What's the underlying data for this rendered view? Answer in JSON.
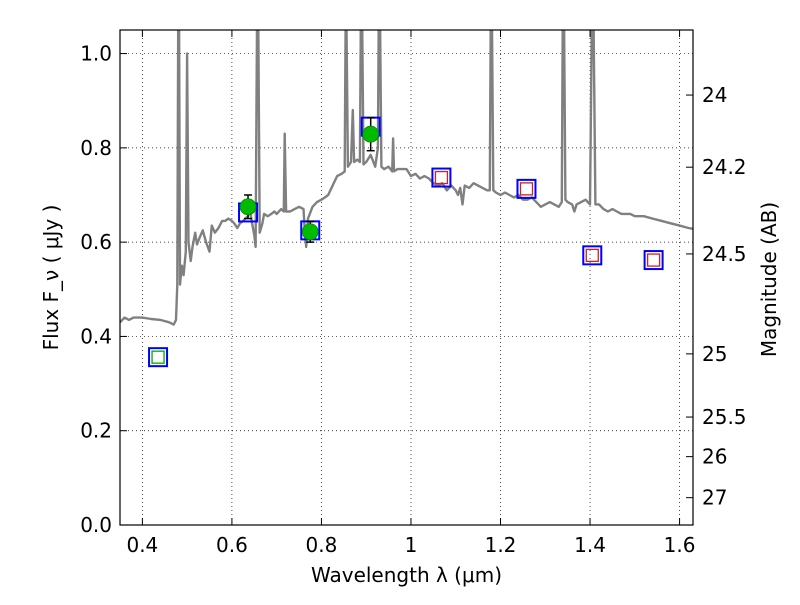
{
  "chart_data": {
    "type": "scatter",
    "xlabel": "Wavelength  λ (μm)",
    "ylabel": "Flux  F_ν  ( μJy )",
    "ylabel_right": "Magnitude (AB)",
    "xlim": [
      0.35,
      1.63
    ],
    "ylim": [
      0.0,
      1.05
    ],
    "x_ticks": [
      0.4,
      0.6,
      0.8,
      1.0,
      1.2,
      1.4,
      1.6
    ],
    "x_tick_labels": [
      "0.4",
      "0.6",
      "0.8",
      "1",
      "1.2",
      "1.4",
      "1.6"
    ],
    "y_ticks": [
      0.0,
      0.2,
      0.4,
      0.6,
      0.8,
      1.0
    ],
    "y_tick_labels": [
      "0.0",
      "0.2",
      "0.4",
      "0.6",
      "0.8",
      "1.0"
    ],
    "right_ticks": [
      {
        "label": "24",
        "flux": 0.912
      },
      {
        "label": "24.2",
        "flux": 0.759
      },
      {
        "label": "24.5",
        "flux": 0.575
      },
      {
        "label": "25",
        "flux": 0.363
      },
      {
        "label": "25.5",
        "flux": 0.229
      },
      {
        "label": "26",
        "flux": 0.145
      },
      {
        "label": "27",
        "flux": 0.058
      }
    ],
    "grid": true,
    "series": [
      {
        "kind": "spectrum-line",
        "color": "#808080",
        "points": [
          [
            0.35,
            0.43
          ],
          [
            0.36,
            0.44
          ],
          [
            0.37,
            0.435
          ],
          [
            0.38,
            0.44
          ],
          [
            0.4,
            0.44
          ],
          [
            0.42,
            0.437
          ],
          [
            0.44,
            0.435
          ],
          [
            0.46,
            0.43
          ],
          [
            0.47,
            0.425
          ],
          [
            0.475,
            0.435
          ],
          [
            0.478,
            0.51
          ],
          [
            0.48,
            1.06
          ],
          [
            0.482,
            1.06
          ],
          [
            0.484,
            0.51
          ],
          [
            0.488,
            0.55
          ],
          [
            0.492,
            0.53
          ],
          [
            0.497,
            0.58
          ],
          [
            0.5,
            1.0
          ],
          [
            0.503,
            0.6
          ],
          [
            0.508,
            0.56
          ],
          [
            0.512,
            0.59
          ],
          [
            0.518,
            0.62
          ],
          [
            0.522,
            0.595
          ],
          [
            0.528,
            0.61
          ],
          [
            0.535,
            0.625
          ],
          [
            0.542,
            0.6
          ],
          [
            0.55,
            0.58
          ],
          [
            0.555,
            0.635
          ],
          [
            0.562,
            0.62
          ],
          [
            0.57,
            0.63
          ],
          [
            0.578,
            0.645
          ],
          [
            0.585,
            0.645
          ],
          [
            0.592,
            0.65
          ],
          [
            0.6,
            0.645
          ],
          [
            0.605,
            0.64
          ],
          [
            0.612,
            0.63
          ],
          [
            0.618,
            0.64
          ],
          [
            0.625,
            0.645
          ],
          [
            0.63,
            0.65
          ],
          [
            0.636,
            0.655
          ],
          [
            0.64,
            0.67
          ],
          [
            0.645,
            0.64
          ],
          [
            0.65,
            0.615
          ],
          [
            0.653,
            0.59
          ],
          [
            0.656,
            1.06
          ],
          [
            0.659,
            1.06
          ],
          [
            0.662,
            0.62
          ],
          [
            0.668,
            0.64
          ],
          [
            0.672,
            0.66
          ],
          [
            0.68,
            0.655
          ],
          [
            0.688,
            0.66
          ],
          [
            0.695,
            0.665
          ],
          [
            0.7,
            0.66
          ],
          [
            0.71,
            0.67
          ],
          [
            0.716,
            0.665
          ],
          [
            0.718,
            0.83
          ],
          [
            0.721,
            0.665
          ],
          [
            0.73,
            0.665
          ],
          [
            0.74,
            0.67
          ],
          [
            0.75,
            0.675
          ],
          [
            0.76,
            0.67
          ],
          [
            0.763,
            0.62
          ],
          [
            0.766,
            0.59
          ],
          [
            0.77,
            0.65
          ],
          [
            0.78,
            0.675
          ],
          [
            0.79,
            0.685
          ],
          [
            0.8,
            0.69
          ],
          [
            0.808,
            0.695
          ],
          [
            0.815,
            0.7
          ],
          [
            0.825,
            0.72
          ],
          [
            0.835,
            0.74
          ],
          [
            0.845,
            0.745
          ],
          [
            0.852,
            0.75
          ],
          [
            0.854,
            1.06
          ],
          [
            0.856,
            1.06
          ],
          [
            0.859,
            0.76
          ],
          [
            0.866,
            0.77
          ],
          [
            0.87,
            0.88
          ],
          [
            0.873,
            0.77
          ],
          [
            0.88,
            0.775
          ],
          [
            0.886,
            0.77
          ],
          [
            0.888,
            1.06
          ],
          [
            0.891,
            1.06
          ],
          [
            0.894,
            0.765
          ],
          [
            0.9,
            0.77
          ],
          [
            0.91,
            0.785
          ],
          [
            0.92,
            0.76
          ],
          [
            0.926,
            0.8
          ],
          [
            0.928,
            1.06
          ],
          [
            0.931,
            1.06
          ],
          [
            0.934,
            0.76
          ],
          [
            0.94,
            0.755
          ],
          [
            0.95,
            0.76
          ],
          [
            0.958,
            0.75
          ],
          [
            0.96,
            0.82
          ],
          [
            0.962,
            0.75
          ],
          [
            0.97,
            0.755
          ],
          [
            0.98,
            0.755
          ],
          [
            0.99,
            0.755
          ],
          [
            1.0,
            0.74
          ],
          [
            1.01,
            0.745
          ],
          [
            1.02,
            0.735
          ],
          [
            1.03,
            0.74
          ],
          [
            1.04,
            0.735
          ],
          [
            1.05,
            0.725
          ],
          [
            1.06,
            0.72
          ],
          [
            1.07,
            0.725
          ],
          [
            1.08,
            0.71
          ],
          [
            1.09,
            0.72
          ],
          [
            1.1,
            0.71
          ],
          [
            1.105,
            0.7
          ],
          [
            1.11,
            0.715
          ],
          [
            1.115,
            0.68
          ],
          [
            1.12,
            0.72
          ],
          [
            1.13,
            0.715
          ],
          [
            1.14,
            0.725
          ],
          [
            1.15,
            0.72
          ],
          [
            1.16,
            0.715
          ],
          [
            1.17,
            0.71
          ],
          [
            1.176,
            0.71
          ],
          [
            1.178,
            1.06
          ],
          [
            1.181,
            1.06
          ],
          [
            1.184,
            0.71
          ],
          [
            1.19,
            0.705
          ],
          [
            1.2,
            0.7
          ],
          [
            1.21,
            0.705
          ],
          [
            1.22,
            0.7
          ],
          [
            1.23,
            0.695
          ],
          [
            1.24,
            0.7
          ],
          [
            1.25,
            0.69
          ],
          [
            1.26,
            0.69
          ],
          [
            1.27,
            0.695
          ],
          [
            1.28,
            0.685
          ],
          [
            1.29,
            0.675
          ],
          [
            1.3,
            0.68
          ],
          [
            1.31,
            0.685
          ],
          [
            1.32,
            0.68
          ],
          [
            1.33,
            0.675
          ],
          [
            1.337,
            0.685
          ],
          [
            1.339,
            1.06
          ],
          [
            1.342,
            1.06
          ],
          [
            1.345,
            0.69
          ],
          [
            1.35,
            0.685
          ],
          [
            1.36,
            0.68
          ],
          [
            1.365,
            0.665
          ],
          [
            1.37,
            0.68
          ],
          [
            1.38,
            0.685
          ],
          [
            1.39,
            0.69
          ],
          [
            1.395,
            0.685
          ],
          [
            1.4,
            0.68
          ],
          [
            1.404,
            1.06
          ],
          [
            1.408,
            1.06
          ],
          [
            1.412,
            0.68
          ],
          [
            1.42,
            0.68
          ],
          [
            1.43,
            0.67
          ],
          [
            1.44,
            0.665
          ],
          [
            1.45,
            0.67
          ],
          [
            1.46,
            0.665
          ],
          [
            1.47,
            0.66
          ],
          [
            1.48,
            0.66
          ],
          [
            1.49,
            0.66
          ],
          [
            1.5,
            0.655
          ],
          [
            1.52,
            0.655
          ],
          [
            1.54,
            0.65
          ],
          [
            1.56,
            0.645
          ],
          [
            1.58,
            0.64
          ],
          [
            1.6,
            0.635
          ],
          [
            1.62,
            0.63
          ],
          [
            1.63,
            0.628
          ]
        ]
      },
      {
        "kind": "model-box",
        "color": "#0000ff",
        "points": [
          [
            0.435,
            0.356
          ],
          [
            0.636,
            0.663
          ],
          [
            0.775,
            0.625
          ],
          [
            0.91,
            0.845
          ],
          [
            1.068,
            0.737
          ],
          [
            1.258,
            0.713
          ],
          [
            1.405,
            0.572
          ],
          [
            1.542,
            0.562
          ]
        ]
      },
      {
        "kind": "observed-square",
        "color": "#00aa00",
        "points": [
          [
            0.435,
            0.356
          ]
        ]
      },
      {
        "kind": "observed-square",
        "color": "#cc2222",
        "points": [
          [
            1.068,
            0.737
          ],
          [
            1.258,
            0.713
          ],
          [
            1.405,
            0.572
          ],
          [
            1.542,
            0.562
          ]
        ]
      },
      {
        "kind": "observed-dot",
        "color": "#00bb00",
        "points": [
          [
            0.636,
            0.675
          ],
          [
            0.775,
            0.622
          ],
          [
            0.91,
            0.829
          ]
        ],
        "errors": [
          0.025,
          0.022,
          0.035
        ]
      }
    ]
  }
}
